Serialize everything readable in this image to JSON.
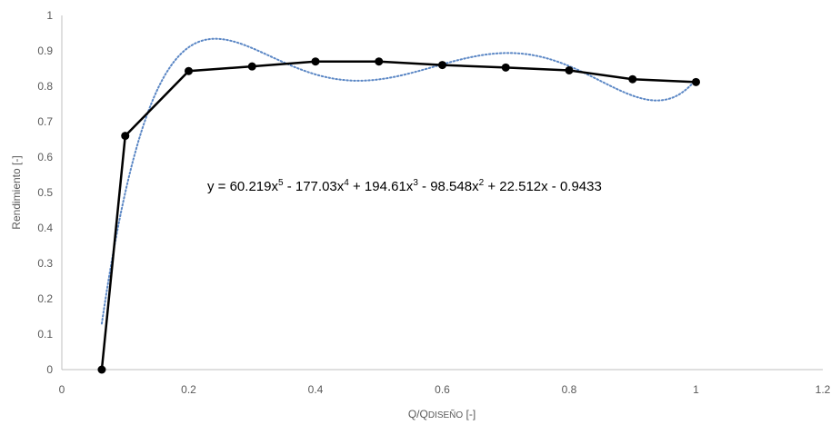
{
  "chart_data": {
    "type": "scatter",
    "xlabel": "Q/Q",
    "xlabel_sub": "DISEÑO",
    "xlabel_suffix": " [-]",
    "ylabel": "Rendimiento [-]",
    "xlim": [
      0,
      1.2
    ],
    "ylim": [
      0,
      1
    ],
    "x_ticks": [
      0,
      0.2,
      0.4,
      0.6,
      0.8,
      1,
      1.2
    ],
    "x_tick_labels": [
      "0",
      "0.2",
      "0.4",
      "0.6",
      "0.8",
      "1",
      "1.2"
    ],
    "y_ticks": [
      0,
      0.1,
      0.2,
      0.3,
      0.4,
      0.5,
      0.6,
      0.7,
      0.8,
      0.9,
      1
    ],
    "y_tick_labels": [
      "0",
      "0.1",
      "0.2",
      "0.3",
      "0.4",
      "0.5",
      "0.6",
      "0.7",
      "0.8",
      "0.9",
      "1"
    ],
    "grid": false,
    "series": [
      {
        "style": "line-markers",
        "color": "#000000",
        "x": [
          0.063,
          0.1,
          0.2,
          0.3,
          0.4,
          0.5,
          0.6,
          0.7,
          0.8,
          0.9,
          1.0
        ],
        "y": [
          0.0,
          0.66,
          0.843,
          0.856,
          0.87,
          0.87,
          0.86,
          0.853,
          0.845,
          0.82,
          0.812
        ]
      }
    ],
    "trendline": {
      "type": "polynomial",
      "order": 5,
      "color": "#5b87c5",
      "style": "dotted",
      "coefficients": [
        60.219,
        -177.03,
        194.61,
        -98.548,
        22.512,
        -0.9433
      ],
      "x_range": [
        0.063,
        1.0
      ]
    },
    "equation": {
      "prefix": "y = 60.219x",
      "e1": "5",
      "t2": " - 177.03x",
      "e2": "4",
      "t3": " + 194.61x",
      "e3": "3",
      "t4": " - 98.548x",
      "e4": "2",
      "t5": " + 22.512x - 0.9433"
    }
  }
}
